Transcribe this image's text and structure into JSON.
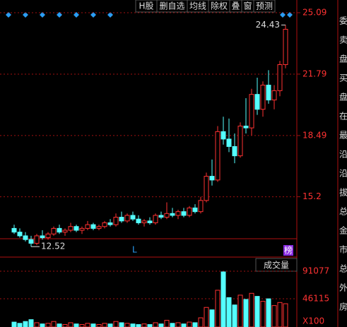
{
  "toolbar": [
    "H股",
    "删自选",
    "均线",
    "除权",
    "叠",
    "窗",
    "预测"
  ],
  "side_panel": [
    "委",
    "卖",
    "盘",
    "买",
    "盘",
    "在",
    "最",
    "沿",
    "沿",
    "拔",
    "总",
    "金",
    "市",
    "总",
    "外",
    "房"
  ],
  "chart_data": [
    {
      "type": "candlestick",
      "ylim": [
        12.3,
        25.09
      ],
      "yticks": [
        15.2,
        18.49,
        21.79,
        25.09
      ],
      "up_color": "#ff3232",
      "down_color": "#54ffff",
      "annotations": [
        {
          "text": "24.43",
          "value": 24.43,
          "index": 48
        },
        {
          "text": "12.52",
          "value": 12.52,
          "index": 3
        }
      ],
      "marker_text": "L",
      "badge_text": "榜",
      "open": [
        13.5,
        13.3,
        13.1,
        12.9,
        12.7,
        13.1,
        13.0,
        13.2,
        13.5,
        13.3,
        13.4,
        13.6,
        13.4,
        13.5,
        13.7,
        13.5,
        13.6,
        13.8,
        13.7,
        14.1,
        13.9,
        14.2,
        14.0,
        13.8,
        13.9,
        13.8,
        14.2,
        14.1,
        14.3,
        14.2,
        14.4,
        14.2,
        14.6,
        14.4,
        15.0,
        16.3,
        16.1,
        18.7,
        18.3,
        17.9,
        17.4,
        19.0,
        18.9,
        20.7,
        19.9,
        21.2,
        20.4,
        20.9,
        22.3
      ],
      "high": [
        13.7,
        13.5,
        13.3,
        13.1,
        13.2,
        13.4,
        13.3,
        13.6,
        13.7,
        13.5,
        13.8,
        13.7,
        13.6,
        13.9,
        13.8,
        13.7,
        13.9,
        14.0,
        14.3,
        14.4,
        14.3,
        14.4,
        14.2,
        14.0,
        14.1,
        14.3,
        14.4,
        14.9,
        14.6,
        14.5,
        14.6,
        14.7,
        14.8,
        15.2,
        16.5,
        17.2,
        19.0,
        19.5,
        19.4,
        18.6,
        19.2,
        20.5,
        21.0,
        21.6,
        21.4,
        22.0,
        21.2,
        22.5,
        24.43
      ],
      "low": [
        13.2,
        13.0,
        12.8,
        12.52,
        12.6,
        12.9,
        12.9,
        13.1,
        13.2,
        13.1,
        13.3,
        13.3,
        13.2,
        13.4,
        13.4,
        13.4,
        13.5,
        13.6,
        13.6,
        13.8,
        13.8,
        13.9,
        13.7,
        13.6,
        13.7,
        13.7,
        14.0,
        14.0,
        14.1,
        14.0,
        14.1,
        14.1,
        14.3,
        14.3,
        14.9,
        15.8,
        16.0,
        18.0,
        17.6,
        17.0,
        17.3,
        18.6,
        18.5,
        19.6,
        19.5,
        20.2,
        19.9,
        20.6,
        22.1
      ],
      "close": [
        13.3,
        13.1,
        12.9,
        12.7,
        13.1,
        13.0,
        13.2,
        13.5,
        13.3,
        13.4,
        13.6,
        13.4,
        13.5,
        13.7,
        13.5,
        13.6,
        13.8,
        13.7,
        14.1,
        13.9,
        14.2,
        14.0,
        13.8,
        13.9,
        13.8,
        14.2,
        14.1,
        14.3,
        14.2,
        14.4,
        14.2,
        14.6,
        14.4,
        15.0,
        16.3,
        16.1,
        18.7,
        18.3,
        17.9,
        17.4,
        19.0,
        18.9,
        20.7,
        19.9,
        21.2,
        20.4,
        20.9,
        22.3,
        24.2
      ]
    },
    {
      "type": "volume",
      "title": "成交量",
      "unit_label": "X100",
      "ylim": [
        0,
        91077
      ],
      "yticks": [
        46115,
        91077
      ],
      "values": [
        8000,
        6000,
        9000,
        12000,
        7000,
        5000,
        6000,
        9000,
        5000,
        4000,
        7000,
        5000,
        4000,
        6000,
        5000,
        4000,
        6000,
        5000,
        9000,
        7000,
        6000,
        5000,
        4000,
        5000,
        4000,
        7000,
        5000,
        11000,
        6000,
        7000,
        5000,
        8000,
        7000,
        15000,
        32000,
        28000,
        60000,
        90000,
        48000,
        36000,
        52000,
        45000,
        55000,
        50000,
        42000,
        46000,
        35000,
        40000,
        38000
      ]
    }
  ]
}
